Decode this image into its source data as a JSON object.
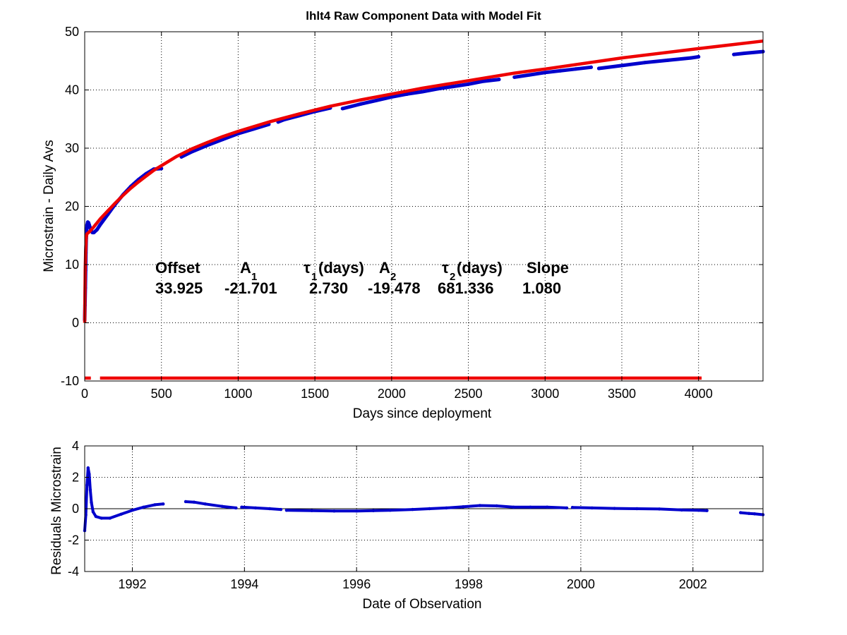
{
  "chart_data": [
    {
      "type": "line",
      "title": "lhlt4  Raw Component Data with Model Fit",
      "xlabel": "Days since deployment",
      "ylabel": "Microstrain - Daily Avs",
      "xlim": [
        0,
        4420
      ],
      "ylim": [
        -10,
        50
      ],
      "xticks": [
        0,
        500,
        1000,
        1500,
        2000,
        2500,
        3000,
        3500,
        4000
      ],
      "yticks": [
        -10,
        0,
        10,
        20,
        30,
        40,
        50
      ],
      "grid": true,
      "series": [
        {
          "color": "#0000cc",
          "style": "dots",
          "segments": [
            {
              "x": [
                0,
                2,
                4,
                6,
                8,
                10,
                15,
                20,
                25,
                30,
                40,
                50,
                60,
                80,
                100,
                150,
                200,
                250,
                300,
                350,
                400,
                450,
                500
              ],
              "y": [
                0.5,
                3,
                6,
                9,
                12,
                14.5,
                16.8,
                17.3,
                17.2,
                16.8,
                16,
                15.5,
                15.5,
                16,
                16.8,
                18.6,
                20.4,
                22,
                23.4,
                24.6,
                25.6,
                26.4,
                26.5
              ]
            },
            {
              "x": [
                630,
                700,
                800,
                900,
                1000,
                1100,
                1200
              ],
              "y": [
                28.5,
                29.4,
                30.5,
                31.5,
                32.5,
                33.3,
                34.1
              ]
            },
            {
              "x": [
                1260,
                1300,
                1400,
                1500,
                1600
              ],
              "y": [
                34.5,
                34.9,
                35.6,
                36.3,
                36.9
              ]
            },
            {
              "x": [
                1680,
                1800,
                1900,
                2000,
                2100
              ],
              "y": [
                36.8,
                37.6,
                38.2,
                38.8,
                39.3
              ]
            },
            {
              "x": [
                2100,
                2200,
                2300,
                2400,
                2500,
                2600,
                2700
              ],
              "y": [
                39.3,
                39.7,
                40.2,
                40.6,
                41.0,
                41.5,
                41.8
              ]
            },
            {
              "x": [
                2800,
                2900,
                3000,
                3100,
                3200,
                3300
              ],
              "y": [
                42.2,
                42.6,
                43.0,
                43.3,
                43.6,
                43.9
              ]
            },
            {
              "x": [
                3350,
                3500,
                3650,
                3800,
                3950,
                4000
              ],
              "y": [
                43.7,
                44.2,
                44.7,
                45.1,
                45.5,
                45.7
              ]
            },
            {
              "x": [
                4230,
                4300,
                4420
              ],
              "y": [
                46.1,
                46.3,
                46.6
              ]
            }
          ]
        },
        {
          "color": "#ee0000",
          "style": "thick-line",
          "segments": [
            {
              "x": [
                0,
                3,
                6,
                10,
                15,
                20,
                30,
                50,
                75,
                100,
                150,
                200,
                250,
                300,
                350,
                400,
                450,
                500,
                600,
                700,
                800,
                900,
                1000,
                1200,
                1400,
                1600,
                1800,
                2000,
                2200,
                2500,
                2800,
                3000,
                3500,
                4000,
                4420
              ],
              "y": [
                0.0,
                9.0,
                12.2,
                14.7,
                15.3,
                15.4,
                15.6,
                16.2,
                17.0,
                17.8,
                19.2,
                20.6,
                21.9,
                23.1,
                24.2,
                25.2,
                26.2,
                27.0,
                28.6,
                29.9,
                31.0,
                32.0,
                32.9,
                34.5,
                35.9,
                37.2,
                38.3,
                39.3,
                40.3,
                41.6,
                42.9,
                43.6,
                45.5,
                47.1,
                48.4
              ]
            }
          ]
        },
        {
          "color": "#ee0000",
          "style": "thick-line",
          "segments": [
            {
              "x": [
                0,
                40
              ],
              "y": [
                -9.5,
                -9.5
              ]
            },
            {
              "x": [
                100,
                4020
              ],
              "y": [
                -9.5,
                -9.5
              ]
            }
          ]
        }
      ],
      "annotation": {
        "headers": [
          "Offset",
          "A",
          "τ",
          "(days)",
          "A",
          "τ",
          "(days)",
          "Slope"
        ],
        "subscripts": [
          "1",
          "1",
          "2",
          "2"
        ],
        "values": [
          "33.925",
          "-21.701",
          "2.730",
          "-19.478",
          "681.336",
          "1.080"
        ]
      }
    },
    {
      "type": "scatter",
      "xlabel": "Date of Observation",
      "ylabel": "Residuals Microstrain",
      "xlim": [
        1991.15,
        2003.25
      ],
      "ylim": [
        -4,
        4
      ],
      "xticks": [
        "1992",
        "1994",
        "1996",
        "1998",
        "2000",
        "2002"
      ],
      "xtick_values": [
        1992,
        1994,
        1996,
        1998,
        2000,
        2002
      ],
      "yticks": [
        -4,
        -2,
        0,
        2,
        4
      ],
      "grid": true,
      "zero_line": true,
      "series": [
        {
          "color": "#0000cc",
          "segments": [
            {
              "x": [
                1991.15,
                1991.17,
                1991.19,
                1991.21,
                1991.23,
                1991.25,
                1991.27,
                1991.3,
                1991.35,
                1991.45,
                1991.6,
                1991.8,
                1992.0,
                1992.2,
                1992.4,
                1992.55
              ],
              "y": [
                -1.4,
                -0.4,
                1.5,
                2.6,
                2.2,
                1.2,
                0.4,
                -0.2,
                -0.5,
                -0.6,
                -0.6,
                -0.35,
                -0.1,
                0.1,
                0.25,
                0.3
              ]
            },
            {
              "x": [
                1992.95,
                1993.1,
                1993.3,
                1993.6,
                1993.85
              ],
              "y": [
                0.45,
                0.42,
                0.3,
                0.15,
                0.05
              ]
            },
            {
              "x": [
                1993.95,
                1994.2,
                1994.45,
                1994.65
              ],
              "y": [
                0.1,
                0.05,
                0.0,
                -0.05
              ]
            },
            {
              "x": [
                1994.75,
                1995.2,
                1995.6,
                1996.0,
                1996.3
              ],
              "y": [
                -0.1,
                -0.12,
                -0.15,
                -0.15,
                -0.12
              ]
            },
            {
              "x": [
                1996.3,
                1996.6,
                1997.0,
                1997.3,
                1997.6,
                1997.9,
                1998.2,
                1998.5,
                1998.8,
                1999.1,
                1999.4,
                1999.75
              ],
              "y": [
                -0.12,
                -0.1,
                -0.05,
                0.0,
                0.05,
                0.12,
                0.2,
                0.18,
                0.1,
                0.1,
                0.1,
                0.05
              ]
            },
            {
              "x": [
                1999.85,
                2000.2,
                2000.6,
                2001.0,
                2001.4,
                2001.8,
                2002.1,
                2002.25
              ],
              "y": [
                0.08,
                0.05,
                0.02,
                0.0,
                -0.02,
                -0.08,
                -0.1,
                -0.12
              ]
            },
            {
              "x": [
                2002.85,
                2003.0,
                2003.1,
                2003.25
              ],
              "y": [
                -0.25,
                -0.3,
                -0.33,
                -0.38
              ]
            }
          ]
        }
      ]
    }
  ]
}
